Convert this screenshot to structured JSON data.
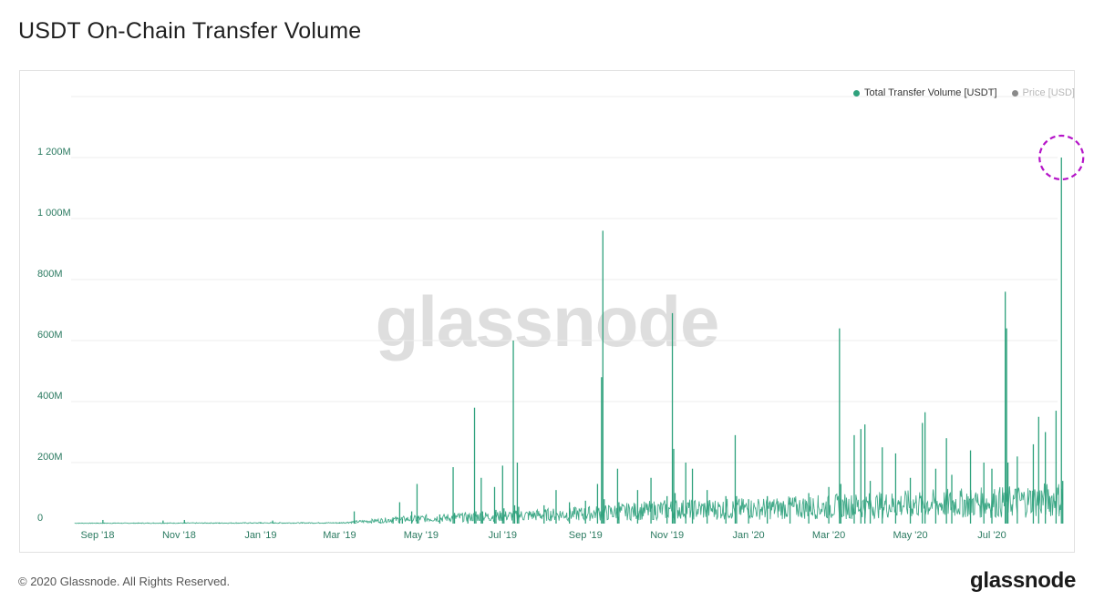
{
  "title": "USDT On-Chain Transfer Volume",
  "footer": {
    "copyright": "© 2020 Glassnode. All Rights Reserved.",
    "brand": "glassnode"
  },
  "watermark": "glassnode",
  "colors": {
    "series": "#2ea17c",
    "price": "#8a8a8a",
    "axis_text": "#2a7a60",
    "highlight": "#b514c8"
  },
  "legend": [
    {
      "label": "Total Transfer Volume [USDT]",
      "color": "#2ea17c",
      "active": true
    },
    {
      "label": "Price [USD]",
      "color": "#8a8a8a",
      "active": false
    }
  ],
  "chart_data": {
    "type": "area",
    "title": "USDT On-Chain Transfer Volume",
    "xlabel": "",
    "ylabel": "",
    "grid": true,
    "legend_position": "top-right",
    "x_ticks": [
      "Sep '18",
      "Nov '18",
      "Jan '19",
      "Mar '19",
      "May '19",
      "Jul '19",
      "Sep '19",
      "Nov '19",
      "Jan '20",
      "Mar '20",
      "May '20",
      "Jul '20"
    ],
    "y_ticks": [
      "0",
      "200M",
      "400M",
      "600M",
      "800M",
      "1 000M",
      "1 200M"
    ],
    "ylim": [
      0,
      1400
    ],
    "y_unit": "M USDT",
    "xlim": [
      "2018-08-15",
      "2020-09-01"
    ],
    "series": [
      {
        "name": "Total Transfer Volume [USDT]",
        "points": [
          [
            "2018-08-15",
            1
          ],
          [
            "2018-09-01",
            3
          ],
          [
            "2018-09-05",
            12
          ],
          [
            "2018-09-06",
            2
          ],
          [
            "2018-10-01",
            2
          ],
          [
            "2018-10-20",
            10
          ],
          [
            "2018-10-21",
            2
          ],
          [
            "2018-11-05",
            12
          ],
          [
            "2018-11-06",
            2
          ],
          [
            "2018-12-01",
            3
          ],
          [
            "2019-01-01",
            5
          ],
          [
            "2019-01-10",
            10
          ],
          [
            "2019-01-11",
            3
          ],
          [
            "2019-02-01",
            3
          ],
          [
            "2019-03-01",
            3
          ],
          [
            "2019-03-12",
            40
          ],
          [
            "2019-03-13",
            3
          ],
          [
            "2019-04-01",
            5
          ],
          [
            "2019-04-10",
            20
          ],
          [
            "2019-04-15",
            70
          ],
          [
            "2019-04-17",
            15
          ],
          [
            "2019-04-24",
            40
          ],
          [
            "2019-04-28",
            130
          ],
          [
            "2019-04-29",
            25
          ],
          [
            "2019-05-15",
            30
          ],
          [
            "2019-05-25",
            185
          ],
          [
            "2019-05-26",
            35
          ],
          [
            "2019-06-05",
            30
          ],
          [
            "2019-06-10",
            380
          ],
          [
            "2019-06-11",
            40
          ],
          [
            "2019-06-15",
            150
          ],
          [
            "2019-06-16",
            40
          ],
          [
            "2019-06-25",
            120
          ],
          [
            "2019-06-26",
            45
          ],
          [
            "2019-07-01",
            190
          ],
          [
            "2019-07-02",
            50
          ],
          [
            "2019-07-09",
            600
          ],
          [
            "2019-07-10",
            60
          ],
          [
            "2019-07-12",
            200
          ],
          [
            "2019-07-13",
            55
          ],
          [
            "2019-08-01",
            60
          ],
          [
            "2019-08-10",
            110
          ],
          [
            "2019-08-20",
            70
          ],
          [
            "2019-09-01",
            75
          ],
          [
            "2019-09-10",
            130
          ],
          [
            "2019-09-13",
            480
          ],
          [
            "2019-09-14",
            960
          ],
          [
            "2019-09-15",
            80
          ],
          [
            "2019-09-25",
            180
          ],
          [
            "2019-09-26",
            70
          ],
          [
            "2019-10-10",
            110
          ],
          [
            "2019-10-20",
            150
          ],
          [
            "2019-11-01",
            90
          ],
          [
            "2019-11-05",
            690
          ],
          [
            "2019-11-06",
            245
          ],
          [
            "2019-11-07",
            100
          ],
          [
            "2019-11-15",
            200
          ],
          [
            "2019-11-20",
            180
          ],
          [
            "2019-12-01",
            110
          ],
          [
            "2019-12-15",
            90
          ],
          [
            "2019-12-22",
            290
          ],
          [
            "2019-12-23",
            90
          ],
          [
            "2020-01-01",
            80
          ],
          [
            "2020-01-15",
            90
          ],
          [
            "2020-02-01",
            85
          ],
          [
            "2020-02-15",
            100
          ],
          [
            "2020-03-01",
            120
          ],
          [
            "2020-03-09",
            640
          ],
          [
            "2020-03-10",
            130
          ],
          [
            "2020-03-20",
            290
          ],
          [
            "2020-03-25",
            310
          ],
          [
            "2020-03-28",
            325
          ],
          [
            "2020-04-01",
            140
          ],
          [
            "2020-04-10",
            250
          ],
          [
            "2020-04-20",
            230
          ],
          [
            "2020-05-01",
            150
          ],
          [
            "2020-05-10",
            330
          ],
          [
            "2020-05-12",
            365
          ],
          [
            "2020-05-20",
            180
          ],
          [
            "2020-05-28",
            280
          ],
          [
            "2020-06-01",
            160
          ],
          [
            "2020-06-15",
            240
          ],
          [
            "2020-06-25",
            200
          ],
          [
            "2020-07-01",
            180
          ],
          [
            "2020-07-11",
            760
          ],
          [
            "2020-07-12",
            640
          ],
          [
            "2020-07-13",
            200
          ],
          [
            "2020-07-20",
            220
          ],
          [
            "2020-08-01",
            260
          ],
          [
            "2020-08-05",
            350
          ],
          [
            "2020-08-10",
            300
          ],
          [
            "2020-08-18",
            370
          ],
          [
            "2020-08-22",
            1200
          ],
          [
            "2020-08-23",
            140
          ]
        ]
      }
    ],
    "annotations": [
      {
        "type": "dashed-circle",
        "date": "2020-08-22",
        "value": 1200
      }
    ]
  }
}
